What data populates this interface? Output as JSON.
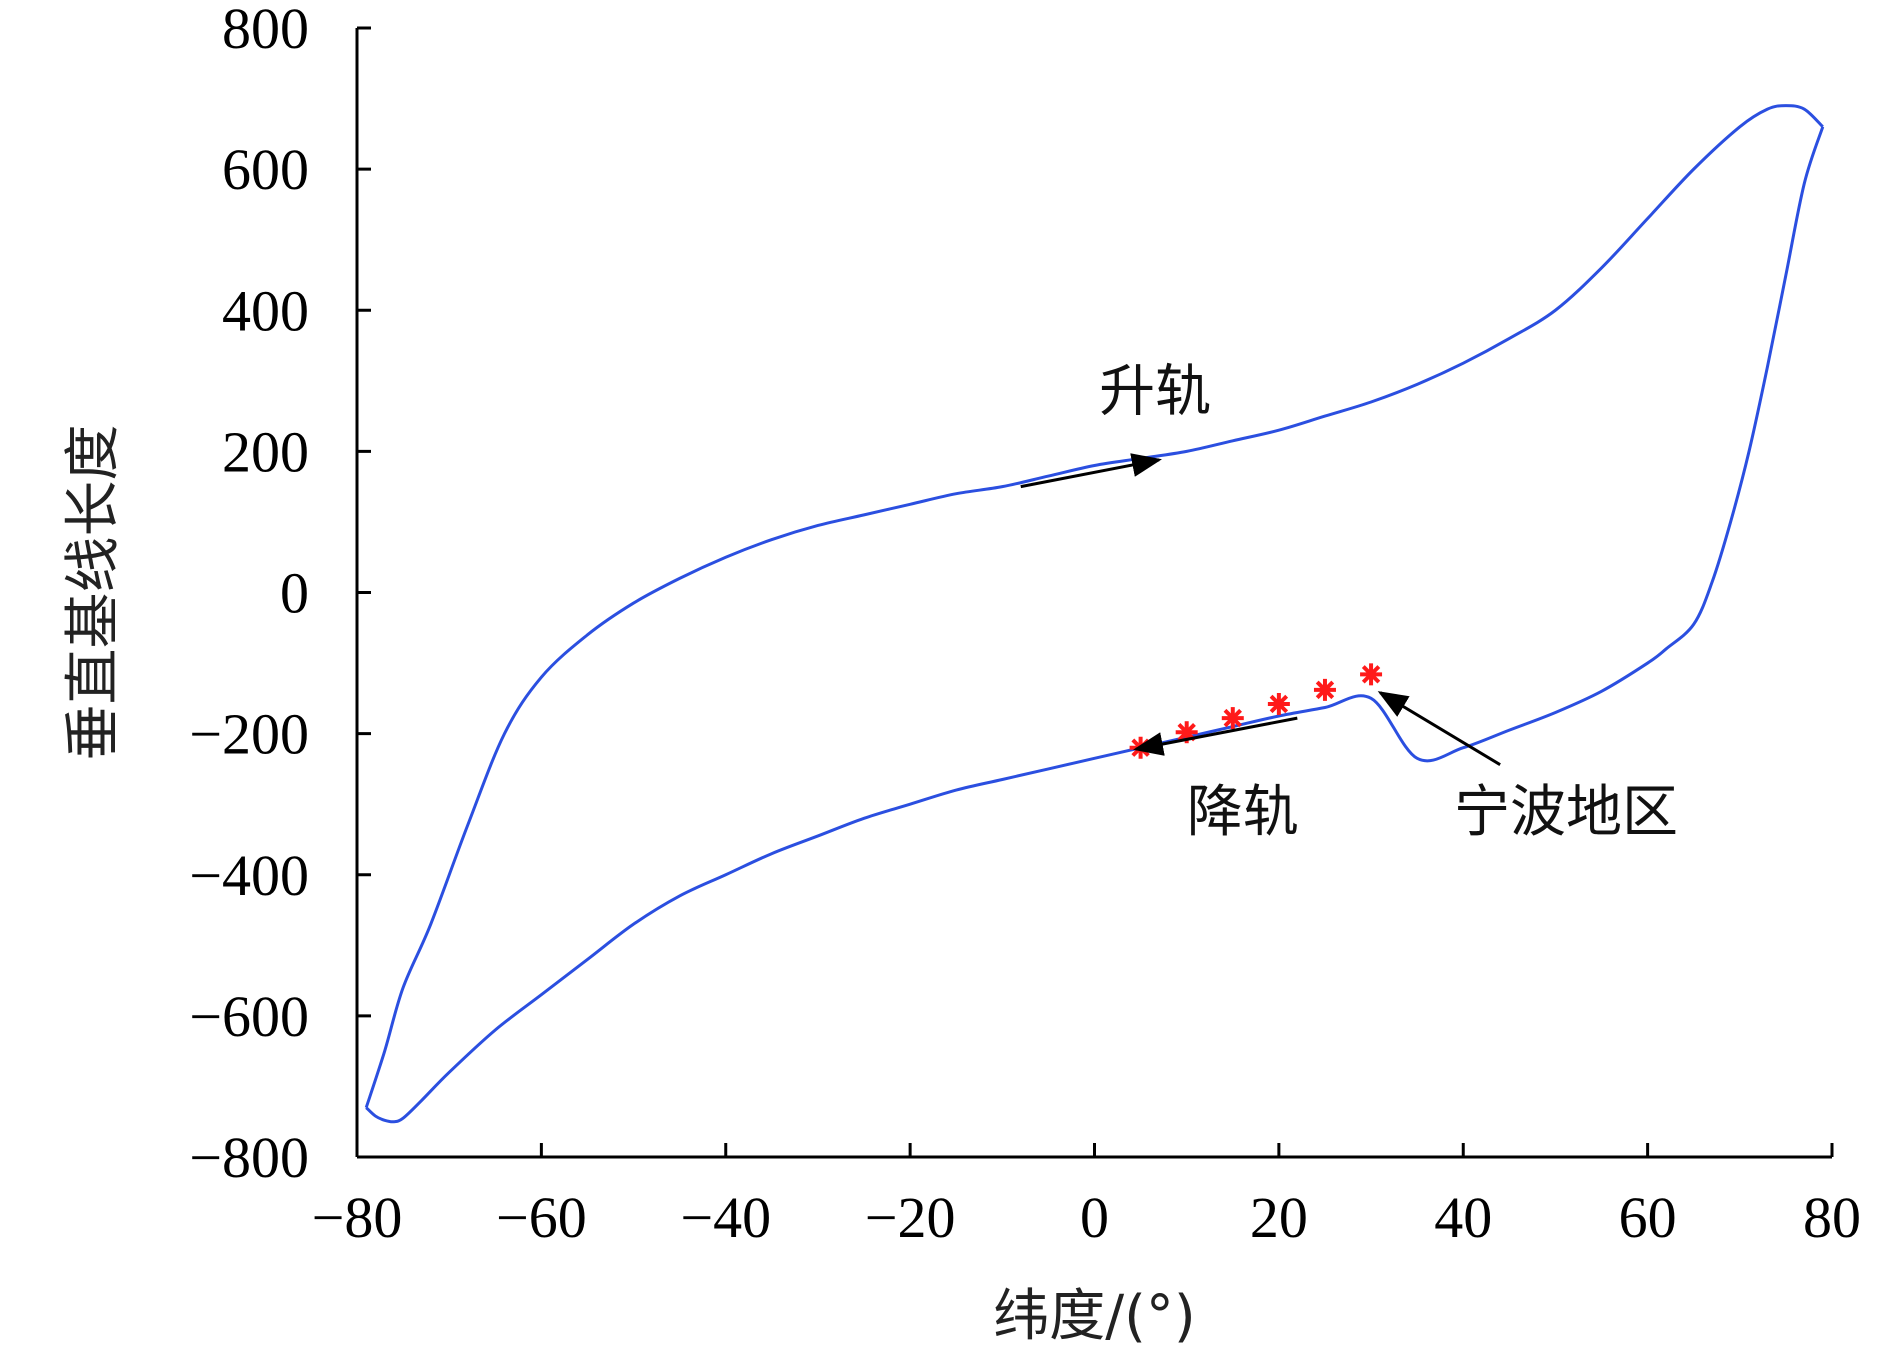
{
  "chart_data": {
    "type": "line",
    "title": "",
    "xlabel": "纬度/(°)",
    "ylabel": "垂直基线长度",
    "xlim": [
      -80,
      80
    ],
    "ylim": [
      -800,
      800
    ],
    "xticks": [
      -80,
      -60,
      -40,
      -20,
      0,
      20,
      40,
      60,
      80
    ],
    "yticks": [
      -800,
      -600,
      -400,
      -200,
      0,
      200,
      400,
      600,
      800
    ],
    "xtick_labels": [
      "−80",
      "−60",
      "−40",
      "−20",
      "0",
      "20",
      "40",
      "60",
      "80"
    ],
    "ytick_labels": [
      "−800",
      "−600",
      "−400",
      "−200",
      "0",
      "200",
      "400",
      "600",
      "800"
    ],
    "grid": false,
    "series": [
      {
        "name": "升轨",
        "color": "#2b4fe0",
        "x": [
          -79,
          -77,
          -75,
          -72,
          -68,
          -64,
          -60,
          -55,
          -50,
          -45,
          -40,
          -35,
          -30,
          -25,
          -20,
          -15,
          -10,
          -5,
          0,
          5,
          10,
          15,
          20,
          25,
          30,
          35,
          40,
          45,
          50,
          55,
          60,
          65,
          70,
          73,
          75,
          77,
          79
        ],
        "y": [
          -730,
          -650,
          -560,
          -470,
          -330,
          -200,
          -120,
          -60,
          -15,
          20,
          50,
          75,
          95,
          110,
          125,
          140,
          150,
          165,
          180,
          190,
          200,
          215,
          230,
          250,
          270,
          295,
          325,
          360,
          400,
          460,
          530,
          600,
          660,
          685,
          690,
          685,
          660
        ]
      },
      {
        "name": "降轨",
        "color": "#2b4fe0",
        "x": [
          79,
          77,
          75,
          73,
          71,
          69,
          67,
          65,
          62,
          60,
          55,
          50,
          45,
          40,
          35,
          30,
          25,
          20,
          15,
          10,
          5,
          0,
          -5,
          -10,
          -15,
          -20,
          -25,
          -30,
          -35,
          -40,
          -45,
          -50,
          -55,
          -60,
          -65,
          -70,
          -73,
          -75,
          -76,
          -77,
          -78,
          -79
        ],
        "y": [
          660,
          580,
          450,
          320,
          200,
          100,
          15,
          -45,
          -80,
          -100,
          -140,
          -170,
          -195,
          -220,
          -235,
          -150,
          -163,
          -175,
          -190,
          -205,
          -220,
          -235,
          -250,
          -265,
          -280,
          -300,
          -320,
          -345,
          -370,
          -400,
          -430,
          -470,
          -520,
          -570,
          -620,
          -680,
          -720,
          -745,
          -750,
          -748,
          -742,
          -730
        ]
      }
    ],
    "points": {
      "name": "宁波地区",
      "marker": "*",
      "color": "#ff1a1a",
      "x": [
        5,
        10,
        15,
        20,
        25,
        30
      ],
      "y": [
        -220,
        -198,
        -178,
        -158,
        -138,
        -116
      ]
    },
    "annotations": [
      {
        "text": "升轨"
      },
      {
        "text": "降轨"
      },
      {
        "text": "宁波地区"
      }
    ]
  }
}
